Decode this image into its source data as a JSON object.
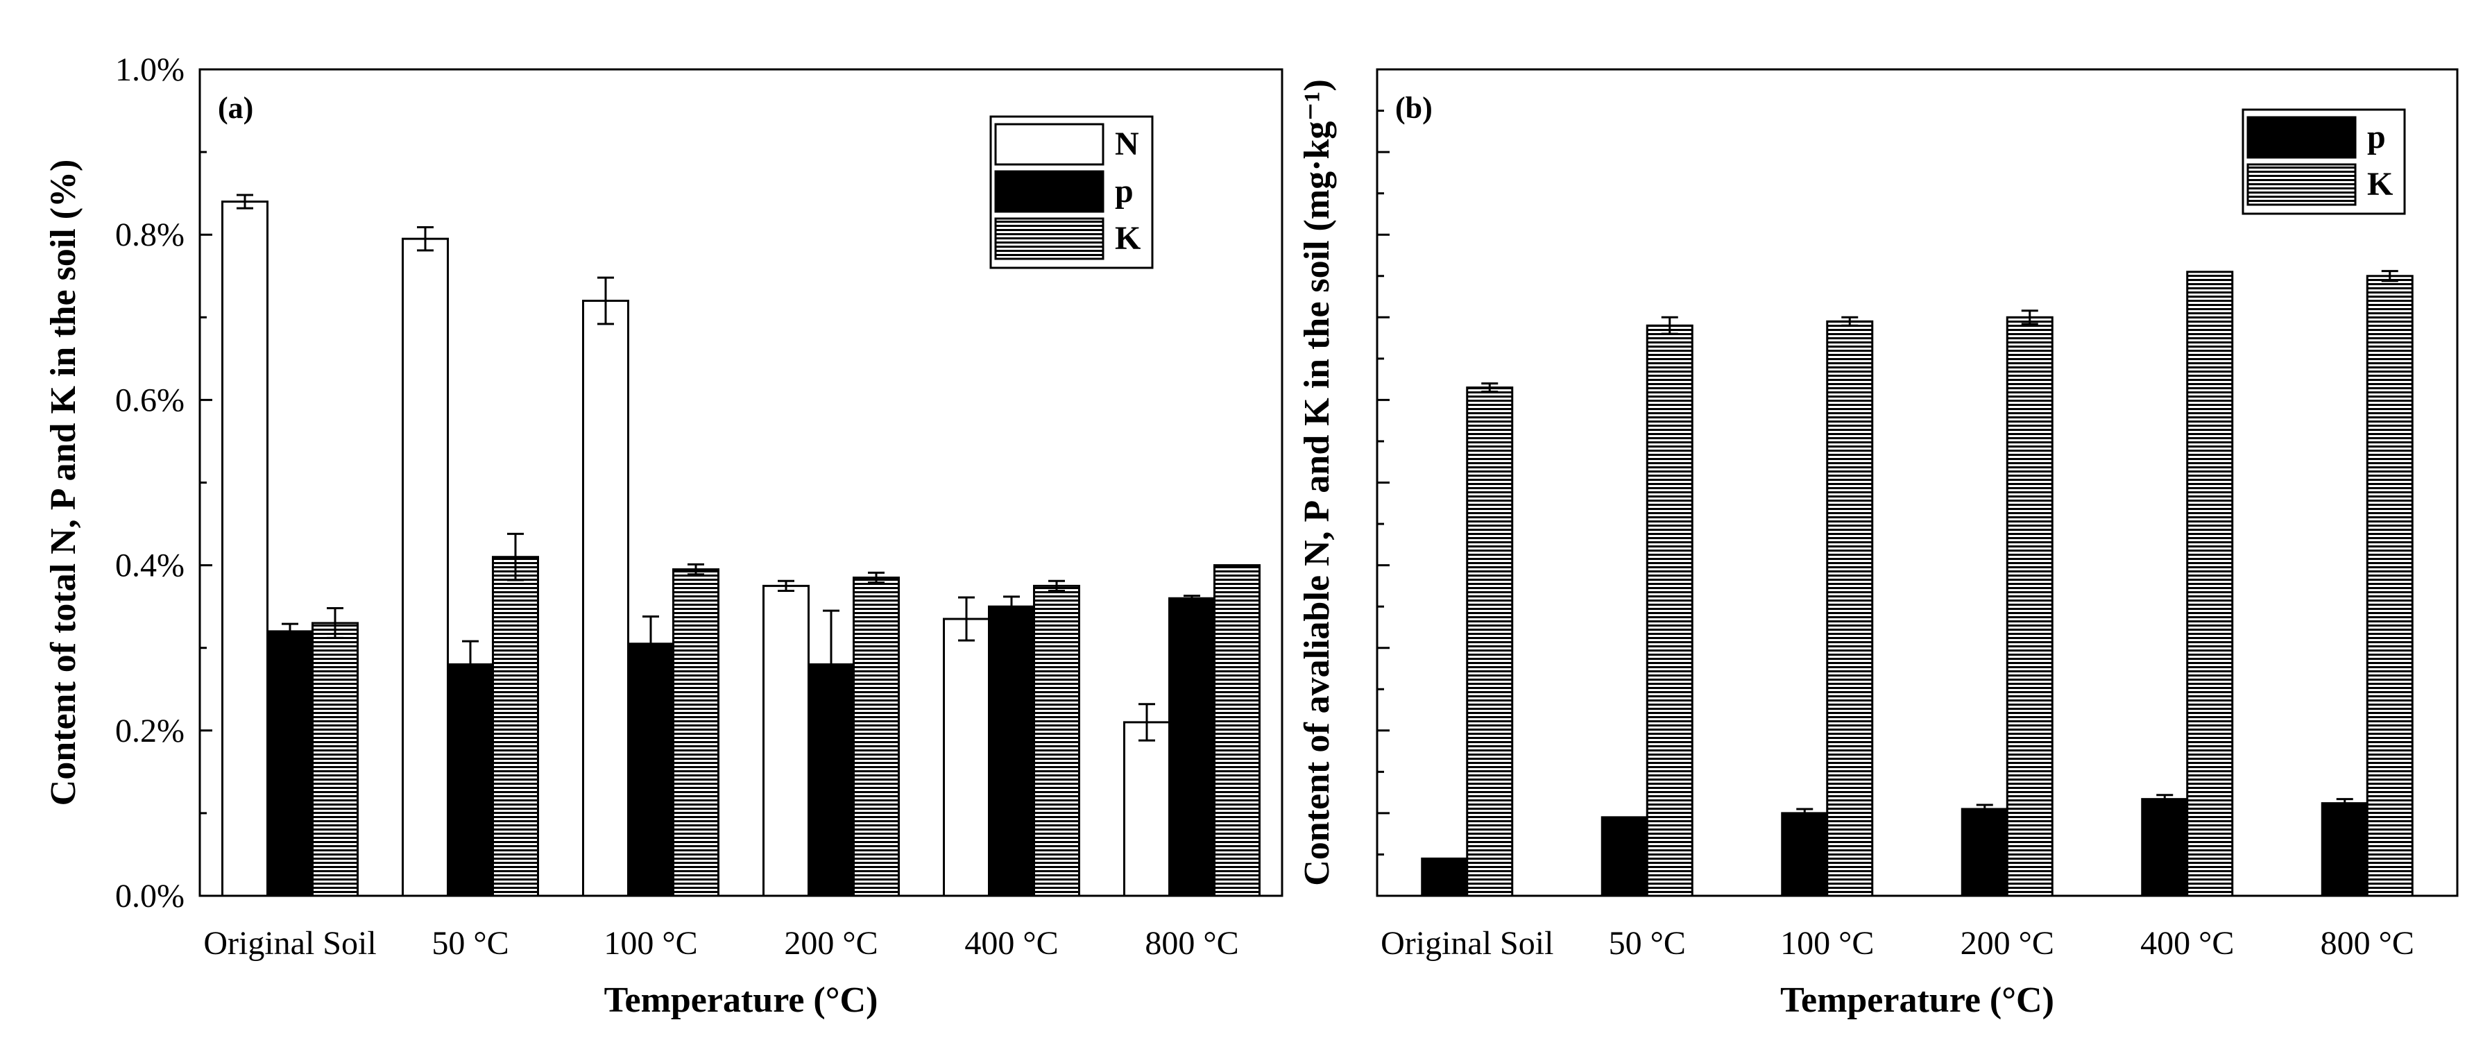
{
  "chart_data": [
    {
      "panel_label": "(a)",
      "type": "bar",
      "categories": [
        "Original Soil",
        "50 °C",
        "100 °C",
        "200 °C",
        "400 °C",
        "800 °C"
      ],
      "series": [
        {
          "name": "N",
          "values": [
            0.84,
            0.795,
            0.72,
            0.375,
            0.335,
            0.21
          ],
          "errors": [
            0.008,
            0.014,
            0.028,
            0.006,
            0.026,
            0.022
          ],
          "fill": "#ffffff",
          "pattern": "none"
        },
        {
          "name": "p",
          "values": [
            0.32,
            0.28,
            0.305,
            0.28,
            0.35,
            0.36
          ],
          "errors": [
            0.009,
            0.028,
            0.033,
            0.065,
            0.012,
            0.003
          ],
          "fill": "#000000",
          "pattern": "none"
        },
        {
          "name": "K",
          "values": [
            0.33,
            0.41,
            0.395,
            0.385,
            0.375,
            0.4
          ],
          "errors": [
            0.018,
            0.028,
            0.006,
            0.006,
            0.006,
            0.0
          ],
          "fill": "#ffffff",
          "pattern": "hlines"
        }
      ],
      "ylim": [
        0,
        1.0
      ],
      "yticks": [
        0,
        0.2,
        0.4,
        0.6,
        0.8,
        1.0
      ],
      "ytick_labels": [
        "0.0%",
        "0.2%",
        "0.4%",
        "0.6%",
        "0.8%",
        "1.0%"
      ],
      "xlabel": "Temperature (°C)",
      "ylabel": "Content of total N, P and K in the soil (%)",
      "legend": {
        "position": "top-right",
        "entries": [
          "N",
          "p",
          "K"
        ]
      }
    },
    {
      "panel_label": "(b)",
      "type": "bar",
      "categories": [
        "Original Soil",
        "50 °C",
        "100 °C",
        "200 °C",
        "400 °C",
        "800 °C"
      ],
      "series": [
        {
          "name": "p",
          "values": [
            0.45,
            0.95,
            1.0,
            1.05,
            1.17,
            1.12
          ],
          "errors": [
            0.0,
            0.0,
            0.05,
            0.05,
            0.05,
            0.05
          ],
          "fill": "#000000",
          "pattern": "none"
        },
        {
          "name": "K",
          "values": [
            6.15,
            6.9,
            6.95,
            7.0,
            7.55,
            7.5
          ],
          "errors": [
            0.05,
            0.1,
            0.05,
            0.08,
            0.0,
            0.06
          ],
          "fill": "#ffffff",
          "pattern": "hlines"
        }
      ],
      "ylim": [
        0,
        10
      ],
      "yticks": [
        0,
        1,
        2,
        3,
        4,
        5,
        6,
        7,
        8,
        9,
        10
      ],
      "ytick_labels": [],
      "xlabel": "Temperature (°C)",
      "ylabel": "Content of avaliable N, P and K in the soil (mg·kg⁻¹)",
      "legend": {
        "position": "top-right",
        "entries": [
          "p",
          "K"
        ]
      }
    }
  ]
}
